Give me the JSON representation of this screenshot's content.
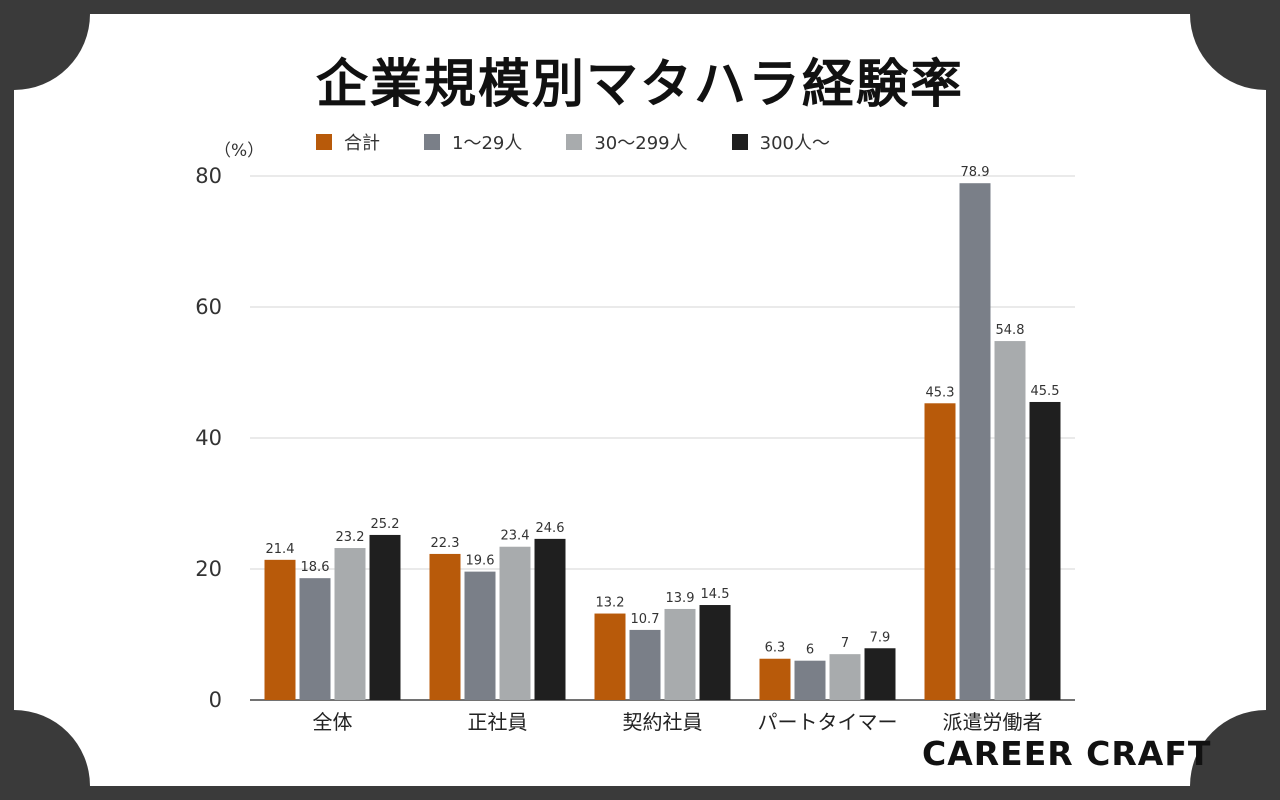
{
  "chart_data": {
    "type": "bar",
    "title": "企業規模別マタハラ経験率",
    "ylabel": "（%）",
    "ylim": [
      0,
      80
    ],
    "yticks": [
      0,
      20,
      40,
      60,
      80
    ],
    "grid": true,
    "legend_position": "top",
    "categories": [
      "全体",
      "正社員",
      "契約社員",
      "パートタイマー",
      "派遣労働者"
    ],
    "series": [
      {
        "name": "合計",
        "color": "#b85a0a",
        "values": [
          21.4,
          22.3,
          13.2,
          6.3,
          45.3
        ],
        "labels": [
          "21.4",
          "22.3",
          "13.2",
          "6.3",
          "45.3"
        ]
      },
      {
        "name": "1〜29人",
        "color": "#7a7f88",
        "values": [
          18.6,
          19.6,
          10.7,
          6,
          78.9
        ],
        "labels": [
          "18.6",
          "19.6",
          "10.7",
          "6",
          "78.9"
        ]
      },
      {
        "name": "30〜299人",
        "color": "#a8abad",
        "values": [
          23.2,
          23.4,
          13.9,
          7,
          54.8
        ],
        "labels": [
          "23.2",
          "23.4",
          "13.9",
          "7",
          "54.8"
        ]
      },
      {
        "name": "300人〜",
        "color": "#1f1f1f",
        "values": [
          25.2,
          24.6,
          14.5,
          7.9,
          45.5
        ],
        "labels": [
          "25.2",
          "24.6",
          "14.5",
          "7.9",
          "45.5"
        ]
      }
    ]
  },
  "brand": "CAREER CRAFT"
}
